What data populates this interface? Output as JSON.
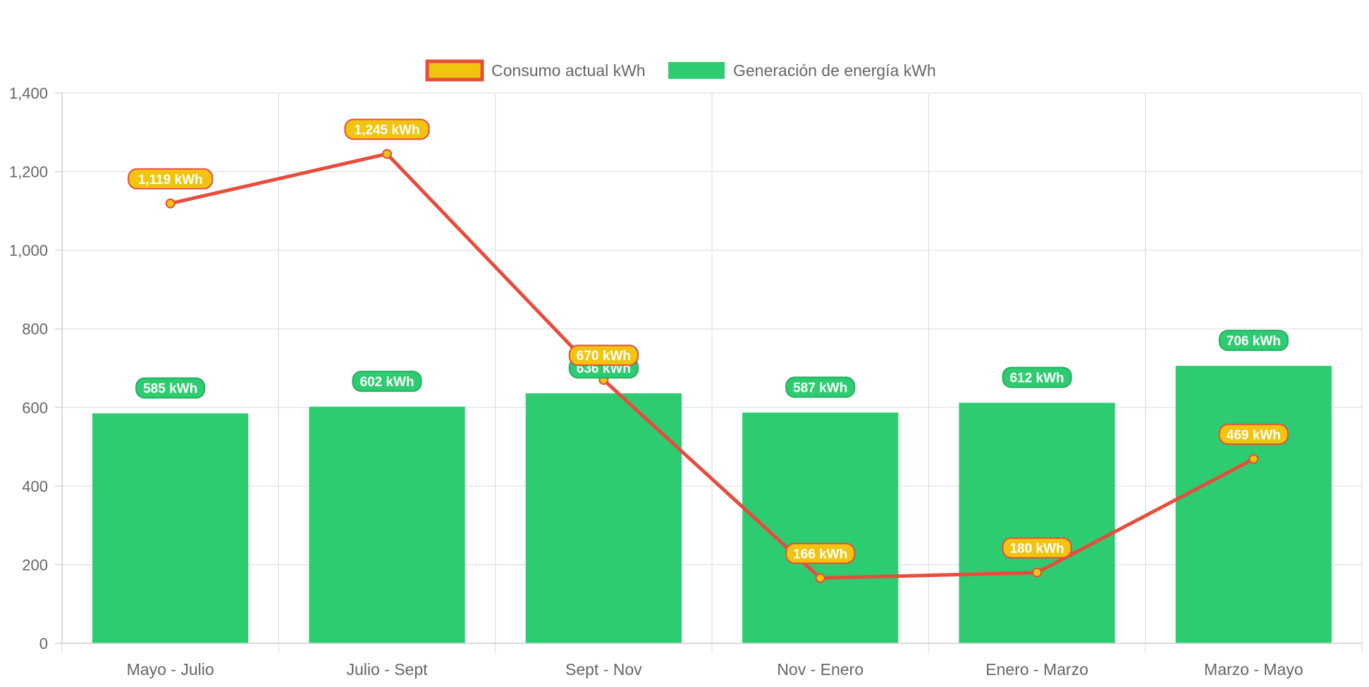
{
  "chart_data": {
    "type": "bar",
    "categories": [
      "Mayo - Julio",
      "Julio - Sept",
      "Sept - Nov",
      "Nov - Enero",
      "Enero - Marzo",
      "Marzo - Mayo"
    ],
    "series": [
      {
        "name": "Consumo actual kWh",
        "type": "line",
        "values": [
          1119,
          1245,
          670,
          166,
          180,
          469
        ],
        "labels": [
          "1,119 kWh",
          "1,245 kWh",
          "670 kWh",
          "166 kWh",
          "180 kWh",
          "469 kWh"
        ],
        "line_color": "#e74c3c",
        "fill_color": "#f1c40f"
      },
      {
        "name": "Generación de energía kWh",
        "type": "bar",
        "values": [
          585,
          602,
          636,
          587,
          612,
          706
        ],
        "labels": [
          "585 kWh",
          "602 kWh",
          "636 kWh",
          "587 kWh",
          "612 kWh",
          "706 kWh"
        ],
        "color": "#2ecc71"
      }
    ],
    "ylim": [
      0,
      1400
    ],
    "yticks": [
      "0",
      "200",
      "400",
      "600",
      "800",
      "1,000",
      "1,200",
      "1,400"
    ],
    "ytick_values": [
      0,
      200,
      400,
      600,
      800,
      1000,
      1200,
      1400
    ],
    "legend_position": "top-center",
    "grid": true
  }
}
